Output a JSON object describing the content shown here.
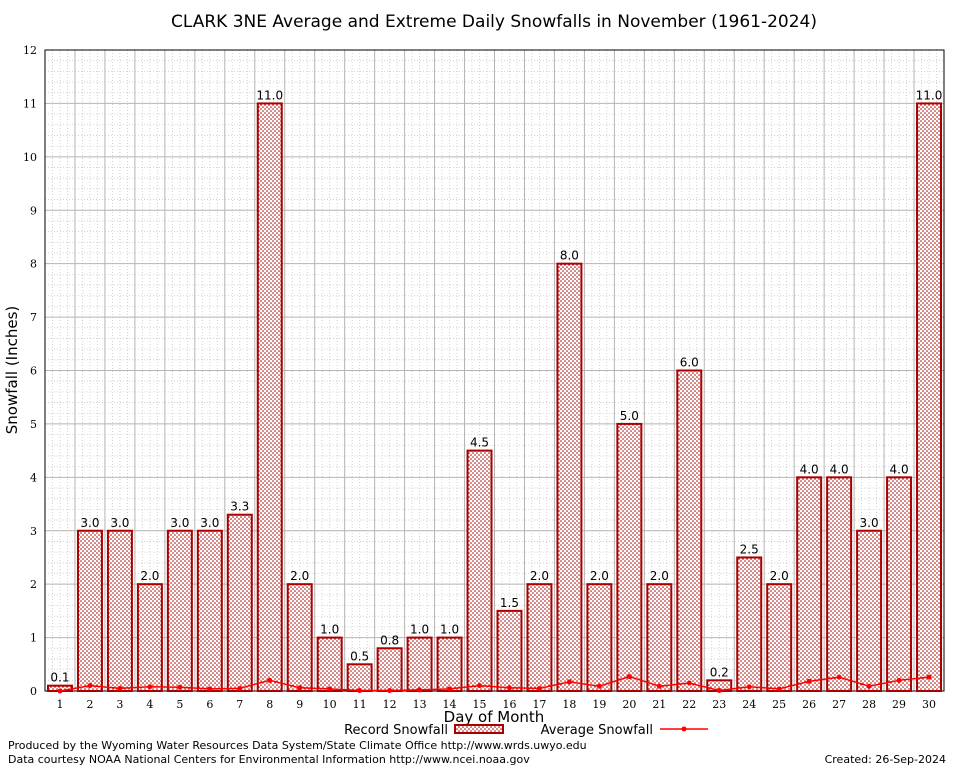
{
  "chart_data": {
    "type": "bar",
    "title": "CLARK 3NE Average and Extreme Daily Snowfalls in November (1961-2024)",
    "xlabel": "Day of Month",
    "ylabel": "Snowfall (Inches)",
    "ylim": [
      0,
      12
    ],
    "yticks": [
      "0",
      "1",
      "2",
      "3",
      "4",
      "5",
      "6",
      "7",
      "8",
      "9",
      "10",
      "11",
      "12"
    ],
    "grid": true,
    "legend_position": "bottom",
    "categories": [
      "1",
      "2",
      "3",
      "4",
      "5",
      "6",
      "7",
      "8",
      "9",
      "10",
      "11",
      "12",
      "13",
      "14",
      "15",
      "16",
      "17",
      "18",
      "19",
      "20",
      "21",
      "22",
      "23",
      "24",
      "25",
      "26",
      "27",
      "28",
      "29",
      "30"
    ],
    "series": [
      {
        "name": "Record Snowfall",
        "kind": "bar",
        "color": "#aa0000",
        "values": [
          0.1,
          3.0,
          3.0,
          2.0,
          3.0,
          3.0,
          3.3,
          11.0,
          2.0,
          1.0,
          0.5,
          0.8,
          1.0,
          1.0,
          4.5,
          1.5,
          2.0,
          8.0,
          2.0,
          5.0,
          2.0,
          6.0,
          0.2,
          2.5,
          2.0,
          4.0,
          4.0,
          3.0,
          4.0,
          11.0
        ],
        "labels": [
          "0.1",
          "3.0",
          "3.0",
          "2.0",
          "3.0",
          "3.0",
          "3.3",
          "11.0",
          "2.0",
          "1.0",
          "0.5",
          "0.8",
          "1.0",
          "1.0",
          "4.5",
          "1.5",
          "2.0",
          "8.0",
          "2.0",
          "5.0",
          "2.0",
          "6.0",
          "0.2",
          "2.5",
          "2.0",
          "4.0",
          "4.0",
          "3.0",
          "4.0",
          "11.0"
        ]
      },
      {
        "name": "Average Snowfall",
        "kind": "line",
        "color": "#ff0000",
        "values": [
          0.0,
          0.1,
          0.05,
          0.08,
          0.07,
          0.04,
          0.05,
          0.2,
          0.06,
          0.04,
          0.01,
          0.01,
          0.02,
          0.04,
          0.1,
          0.06,
          0.05,
          0.17,
          0.09,
          0.27,
          0.09,
          0.15,
          0.01,
          0.08,
          0.04,
          0.18,
          0.26,
          0.09,
          0.2,
          0.26
        ]
      }
    ]
  },
  "footer": {
    "left_line1": "Produced by the Wyoming Water Resources Data System/State Climate Office http://www.wrds.uwyo.edu",
    "left_line2": "Data courtesy NOAA National Centers for Environmental Information http://www.ncei.noaa.gov",
    "created": "Created:  26-Sep-2024"
  }
}
